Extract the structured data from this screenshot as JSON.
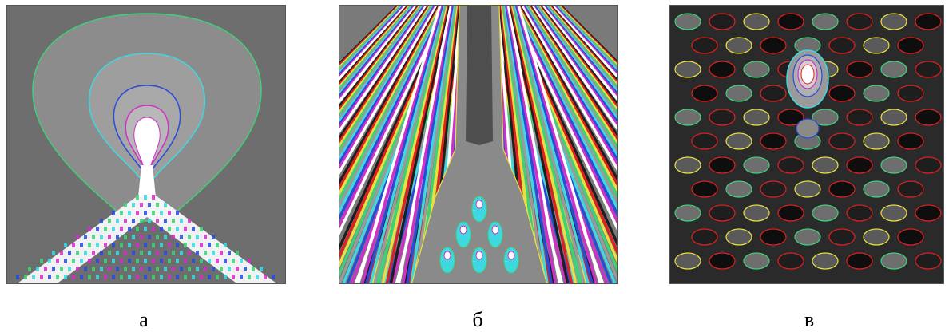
{
  "captions": {
    "a": "а",
    "b": "б",
    "c": "в"
  },
  "colors": {
    "background_gray": "#6b6b6b",
    "light_gray": "#9a9a9a",
    "dark": "#1e1e1e",
    "white": "#ffffff",
    "contour_green": "#3fd07a",
    "contour_cyan": "#3fd8e0",
    "contour_blue": "#2a4bd8",
    "contour_magenta": "#d030c8",
    "contour_yellow": "#e8e040",
    "contour_red": "#e02020"
  }
}
